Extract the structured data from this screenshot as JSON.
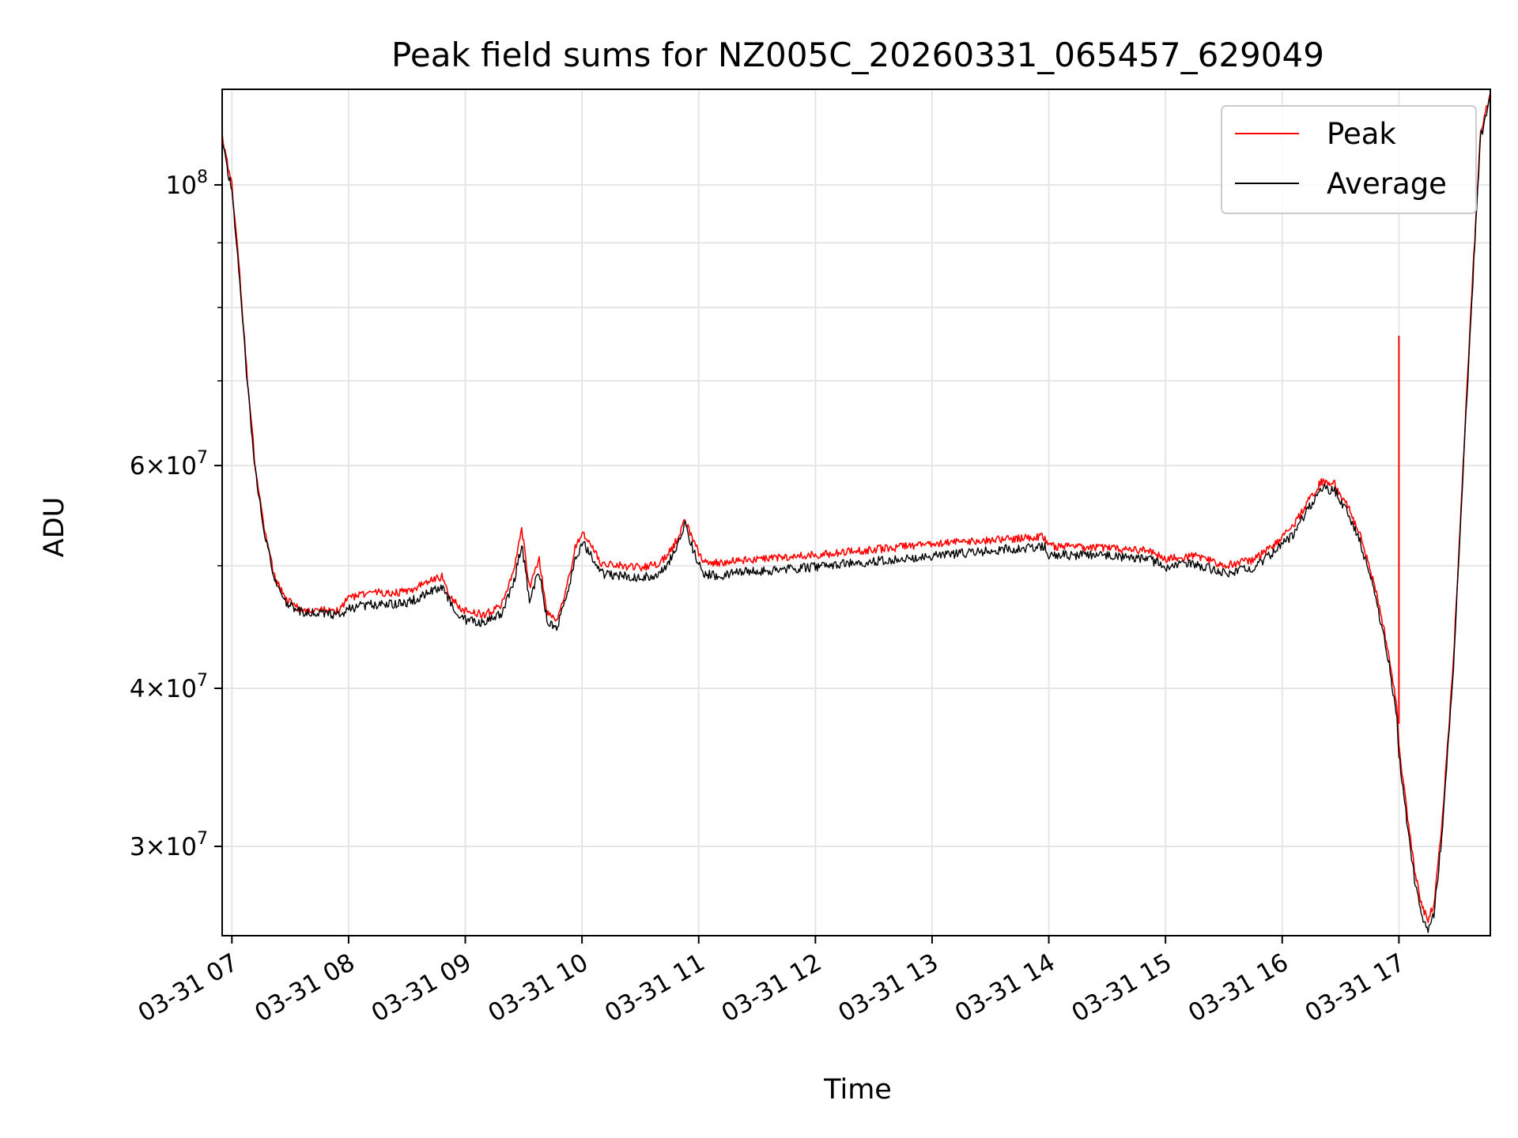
{
  "chart_data": {
    "type": "line",
    "title": "Peak field sums for NZ005C_20260331_065457_629049",
    "xlabel": "Time",
    "ylabel": "ADU",
    "yscale": "log",
    "ylim": [
      25500000,
      119000000
    ],
    "xlim": [
      "2026-03-31 06:55",
      "2026-03-31 17:47"
    ],
    "x_ticks": [
      "03-31 07",
      "03-31 08",
      "03-31 09",
      "03-31 10",
      "03-31 11",
      "03-31 12",
      "03-31 13",
      "03-31 14",
      "03-31 15",
      "03-31 16",
      "03-31 17"
    ],
    "y_ticks": [
      {
        "value": 30000000,
        "base": "3",
        "exp": "7"
      },
      {
        "value": 40000000,
        "base": "4",
        "exp": "7"
      },
      {
        "value": 60000000,
        "base": "6",
        "exp": "7"
      },
      {
        "value": 100000000,
        "base": "",
        "exp": "8"
      }
    ],
    "y_minor_ticks": [
      50000000,
      70000000,
      80000000,
      90000000
    ],
    "grid": true,
    "legend_position": "top-right",
    "series": [
      {
        "name": "Peak",
        "color": "#ff0000",
        "points": [
          [
            "06:55",
            109000000
          ],
          [
            "07:00",
            100000000
          ],
          [
            "07:04",
            85000000
          ],
          [
            "07:08",
            70000000
          ],
          [
            "07:12",
            60000000
          ],
          [
            "07:17",
            53000000
          ],
          [
            "07:22",
            49000000
          ],
          [
            "07:28",
            47000000
          ],
          [
            "07:35",
            46200000
          ],
          [
            "07:45",
            46100000
          ],
          [
            "07:55",
            46000000
          ],
          [
            "08:00",
            47200000
          ],
          [
            "08:10",
            47600000
          ],
          [
            "08:20",
            47600000
          ],
          [
            "08:30",
            47700000
          ],
          [
            "08:40",
            48500000
          ],
          [
            "08:48",
            49000000
          ],
          [
            "08:53",
            47000000
          ],
          [
            "09:00",
            46000000
          ],
          [
            "09:10",
            45800000
          ],
          [
            "09:18",
            46400000
          ],
          [
            "09:25",
            49500000
          ],
          [
            "09:29",
            53500000
          ],
          [
            "09:33",
            48000000
          ],
          [
            "09:38",
            50500000
          ],
          [
            "09:42",
            46000000
          ],
          [
            "09:47",
            45200000
          ],
          [
            "09:52",
            48000000
          ],
          [
            "09:57",
            52000000
          ],
          [
            "10:01",
            53000000
          ],
          [
            "10:06",
            51500000
          ],
          [
            "10:10",
            50200000
          ],
          [
            "10:20",
            50000000
          ],
          [
            "10:30",
            49800000
          ],
          [
            "10:40",
            50200000
          ],
          [
            "10:47",
            51800000
          ],
          [
            "10:53",
            54300000
          ],
          [
            "10:58",
            52000000
          ],
          [
            "11:02",
            50500000
          ],
          [
            "11:10",
            50200000
          ],
          [
            "11:20",
            50500000
          ],
          [
            "11:30",
            50600000
          ],
          [
            "11:40",
            50700000
          ],
          [
            "12:00",
            51000000
          ],
          [
            "12:30",
            51500000
          ],
          [
            "13:00",
            52000000
          ],
          [
            "13:30",
            52400000
          ],
          [
            "13:58",
            52700000
          ],
          [
            "14:00",
            51800000
          ],
          [
            "14:30",
            51600000
          ],
          [
            "14:50",
            51400000
          ],
          [
            "15:00",
            50600000
          ],
          [
            "15:15",
            50900000
          ],
          [
            "15:30",
            50000000
          ],
          [
            "15:45",
            50500000
          ],
          [
            "15:58",
            52300000
          ],
          [
            "16:05",
            53500000
          ],
          [
            "16:12",
            55800000
          ],
          [
            "16:20",
            58300000
          ],
          [
            "16:27",
            58000000
          ],
          [
            "16:33",
            56000000
          ],
          [
            "16:40",
            53000000
          ],
          [
            "16:48",
            48000000
          ],
          [
            "16:55",
            42500000
          ],
          [
            "16:59",
            38500000
          ],
          [
            "17:00",
            36000000
          ],
          [
            "17:04",
            32000000
          ],
          [
            "17:08",
            28800000
          ],
          [
            "17:12",
            26800000
          ],
          [
            "17:15",
            26300000
          ],
          [
            "17:18",
            27000000
          ],
          [
            "17:22",
            31000000
          ],
          [
            "17:28",
            42000000
          ],
          [
            "17:33",
            60000000
          ],
          [
            "17:38",
            85000000
          ],
          [
            "17:42",
            110000000
          ],
          [
            "17:47",
            118000000
          ]
        ],
        "spikes": [
          [
            "17:00",
            37500000,
            76000000
          ]
        ]
      },
      {
        "name": "Average",
        "color": "#000000",
        "points": [
          [
            "06:55",
            108000000
          ],
          [
            "07:00",
            99000000
          ],
          [
            "07:04",
            84000000
          ],
          [
            "07:08",
            69500000
          ],
          [
            "07:12",
            59500000
          ],
          [
            "07:17",
            52800000
          ],
          [
            "07:22",
            48800000
          ],
          [
            "07:28",
            46800000
          ],
          [
            "07:35",
            46000000
          ],
          [
            "07:45",
            45900000
          ],
          [
            "07:55",
            45700000
          ],
          [
            "08:00",
            46200000
          ],
          [
            "08:10",
            46600000
          ],
          [
            "08:20",
            46600000
          ],
          [
            "08:30",
            46700000
          ],
          [
            "08:40",
            47500000
          ],
          [
            "08:48",
            48200000
          ],
          [
            "08:53",
            46500000
          ],
          [
            "09:00",
            45300000
          ],
          [
            "09:10",
            45100000
          ],
          [
            "09:18",
            45700000
          ],
          [
            "09:25",
            48500000
          ],
          [
            "09:29",
            52000000
          ],
          [
            "09:33",
            47000000
          ],
          [
            "09:38",
            49500000
          ],
          [
            "09:42",
            45300000
          ],
          [
            "09:47",
            44600000
          ],
          [
            "09:52",
            47200000
          ],
          [
            "09:57",
            51000000
          ],
          [
            "10:01",
            52000000
          ],
          [
            "10:06",
            50500000
          ],
          [
            "10:10",
            49300000
          ],
          [
            "10:20",
            49100000
          ],
          [
            "10:30",
            48900000
          ],
          [
            "10:40",
            49300000
          ],
          [
            "10:47",
            51000000
          ],
          [
            "10:53",
            53800000
          ],
          [
            "10:58",
            51000000
          ],
          [
            "11:02",
            49300000
          ],
          [
            "11:10",
            49000000
          ],
          [
            "11:20",
            49400000
          ],
          [
            "11:30",
            49500000
          ],
          [
            "11:40",
            49600000
          ],
          [
            "12:00",
            49900000
          ],
          [
            "12:30",
            50400000
          ],
          [
            "13:00",
            50900000
          ],
          [
            "13:30",
            51400000
          ],
          [
            "13:58",
            51800000
          ],
          [
            "14:00",
            51000000
          ],
          [
            "14:30",
            50900000
          ],
          [
            "14:50",
            50700000
          ],
          [
            "15:00",
            49900000
          ],
          [
            "15:15",
            50200000
          ],
          [
            "15:30",
            49300000
          ],
          [
            "15:45",
            49800000
          ],
          [
            "15:58",
            51600000
          ],
          [
            "16:05",
            52800000
          ],
          [
            "16:12",
            55000000
          ],
          [
            "16:20",
            57600000
          ],
          [
            "16:27",
            57300000
          ],
          [
            "16:33",
            55300000
          ],
          [
            "16:40",
            52200000
          ],
          [
            "16:48",
            47300000
          ],
          [
            "16:55",
            41800000
          ],
          [
            "16:59",
            37800000
          ],
          [
            "17:00",
            35400000
          ],
          [
            "17:04",
            31500000
          ],
          [
            "17:08",
            28300000
          ],
          [
            "17:12",
            26300000
          ],
          [
            "17:15",
            25800000
          ],
          [
            "17:18",
            26500000
          ],
          [
            "17:22",
            30500000
          ],
          [
            "17:28",
            41500000
          ],
          [
            "17:33",
            59500000
          ],
          [
            "17:38",
            84000000
          ],
          [
            "17:42",
            109000000
          ],
          [
            "17:47",
            117000000
          ]
        ]
      }
    ]
  }
}
